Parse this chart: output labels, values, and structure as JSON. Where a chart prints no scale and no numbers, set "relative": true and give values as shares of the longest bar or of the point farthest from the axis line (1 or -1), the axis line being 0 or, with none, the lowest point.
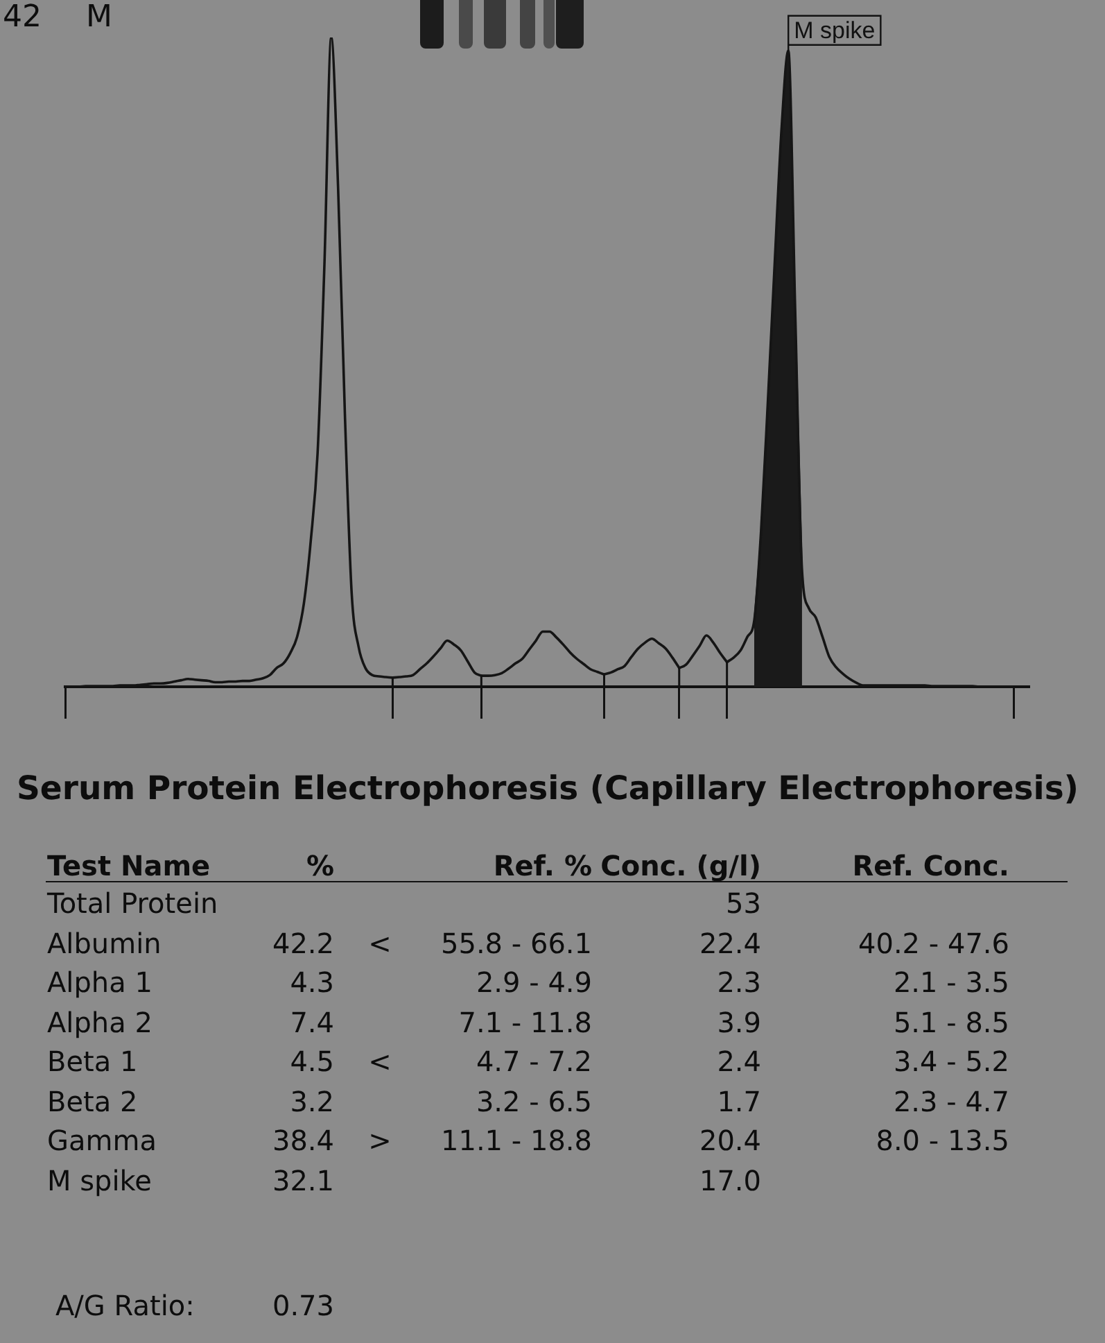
{
  "chart_data": [
    {
      "type": "line",
      "relative": true,
      "tick_labels": false,
      "categories": [
        null,
        null,
        null,
        null,
        null,
        null,
        null,
        null,
        null,
        null,
        null,
        null,
        null,
        null,
        null,
        null,
        null,
        null,
        null,
        null,
        null,
        null,
        null,
        null,
        null,
        null,
        null,
        null,
        null,
        null,
        null,
        null,
        null,
        null,
        null,
        null,
        null,
        null,
        null,
        null,
        null,
        null,
        null,
        null,
        null,
        null,
        null,
        null,
        null,
        null,
        null,
        null,
        null,
        null,
        null,
        null,
        null,
        null,
        null,
        null,
        null,
        null,
        null,
        null,
        null,
        null,
        null,
        null,
        null,
        null,
        null,
        null,
        null,
        null,
        null,
        null,
        null,
        null,
        null,
        null,
        null,
        null,
        null,
        null,
        null,
        null,
        null,
        null,
        null,
        null,
        null,
        null,
        null,
        null,
        null,
        null,
        null,
        null,
        null,
        null,
        null,
        null,
        null,
        null,
        null,
        null,
        null,
        null,
        null,
        null,
        null,
        null,
        null,
        null,
        null,
        null,
        null,
        null,
        null,
        null,
        null,
        null,
        null,
        null,
        null,
        null,
        null,
        null,
        null,
        null,
        null,
        null,
        null,
        null,
        null,
        null,
        null,
        null,
        null,
        null
      ],
      "annotations": [
        "42",
        "M"
      ],
      "series": [
        {
          "type": "line",
          "color": "#151515",
          "values": [
            0,
            0,
            0,
            0.001,
            0.001,
            0.001,
            0.001,
            0.001,
            0.002,
            0.002,
            0.002,
            0.003,
            0.004,
            0.005,
            0.005,
            0.006,
            0.008,
            0.01,
            0.012,
            0.011,
            0.01,
            0.009,
            0.007,
            0.007,
            0.008,
            0.008,
            0.009,
            0.009,
            0.011,
            0.013,
            0.018,
            0.029,
            0.036,
            0.052,
            0.077,
            0.129,
            0.225,
            0.36,
            0.65,
            1,
            0.77,
            0.42,
            0.143,
            0.062,
            0.029,
            0.018,
            0.016,
            0.015,
            0.014,
            null,
            null,
            null,
            null,
            null,
            null,
            null,
            null,
            null,
            null,
            null,
            null,
            null,
            null,
            null,
            null,
            null,
            null,
            null,
            null,
            null,
            null,
            null,
            null,
            null,
            null,
            null,
            null,
            null,
            null,
            null,
            null,
            null,
            null,
            null,
            null,
            null,
            null,
            null,
            null,
            null,
            null,
            null,
            null,
            null,
            null,
            null,
            null,
            null,
            null,
            null,
            null,
            null,
            null,
            null,
            null,
            null,
            null,
            null,
            null,
            null,
            null,
            null,
            null,
            null,
            null,
            null,
            null,
            null,
            null,
            null,
            null,
            null,
            null,
            null,
            null,
            null,
            null,
            null,
            null,
            null,
            null,
            null,
            null,
            null,
            null,
            null,
            null,
            null,
            null,
            null
          ]
        },
        {
          "type": "line",
          "color": "#151515",
          "values": [
            null,
            null,
            null,
            null,
            null,
            null,
            null,
            null,
            null,
            null,
            null,
            null,
            null,
            null,
            null,
            null,
            null,
            null,
            null,
            null,
            null,
            null,
            null,
            null,
            null,
            null,
            null,
            null,
            null,
            null,
            null,
            null,
            null,
            null,
            null,
            null,
            null,
            null,
            null,
            null,
            null,
            null,
            null,
            null,
            null,
            null,
            null,
            null,
            0.014,
            0.015,
            0.016,
            0.018,
            0.027,
            0.036,
            0.047,
            0.059,
            0.071,
            0.065,
            0.056,
            0.039,
            0.022,
            0.017,
            null,
            null,
            null,
            null,
            null,
            null,
            null,
            null,
            null,
            null,
            null,
            null,
            null,
            null,
            null,
            null,
            null,
            null,
            null,
            null,
            null,
            null,
            null,
            null,
            null,
            null,
            null,
            null,
            null,
            null,
            null,
            null,
            null,
            null,
            null,
            null,
            null,
            null,
            null,
            null,
            null,
            null,
            null,
            null,
            null,
            null,
            null,
            null,
            null,
            null,
            null,
            null,
            null,
            null,
            null,
            null,
            null,
            null,
            null,
            null,
            null,
            null,
            null,
            null,
            null,
            null,
            null,
            null,
            null,
            null,
            null,
            null,
            null,
            null,
            null,
            null,
            null,
            null
          ]
        },
        {
          "type": "line",
          "color": "#151515",
          "values": [
            null,
            null,
            null,
            null,
            null,
            null,
            null,
            null,
            null,
            null,
            null,
            null,
            null,
            null,
            null,
            null,
            null,
            null,
            null,
            null,
            null,
            null,
            null,
            null,
            null,
            null,
            null,
            null,
            null,
            null,
            null,
            null,
            null,
            null,
            null,
            null,
            null,
            null,
            null,
            null,
            null,
            null,
            null,
            null,
            null,
            null,
            null,
            null,
            null,
            null,
            null,
            null,
            null,
            null,
            null,
            null,
            null,
            null,
            null,
            null,
            null,
            0.017,
            0.017,
            0.018,
            0.021,
            0.028,
            0.036,
            0.043,
            0.057,
            0.071,
            0.085,
            0.085,
            0.076,
            0.065,
            0.053,
            0.043,
            0.035,
            0.027,
            0.023,
            0.019,
            null,
            null,
            null,
            null,
            null,
            null,
            null,
            null,
            null,
            null,
            null,
            null,
            null,
            null,
            null,
            null,
            null,
            null,
            null,
            null,
            null,
            null,
            null,
            null,
            null,
            null,
            null,
            null,
            null,
            null,
            null,
            null,
            null,
            null,
            null,
            null,
            null,
            null,
            null,
            null,
            null,
            null,
            null,
            null,
            null,
            null,
            null,
            null,
            null,
            null,
            null,
            null,
            null,
            null,
            null,
            null,
            null,
            null,
            null,
            null
          ]
        },
        {
          "type": "line",
          "color": "#151515",
          "values": [
            null,
            null,
            null,
            null,
            null,
            null,
            null,
            null,
            null,
            null,
            null,
            null,
            null,
            null,
            null,
            null,
            null,
            null,
            null,
            null,
            null,
            null,
            null,
            null,
            null,
            null,
            null,
            null,
            null,
            null,
            null,
            null,
            null,
            null,
            null,
            null,
            null,
            null,
            null,
            null,
            null,
            null,
            null,
            null,
            null,
            null,
            null,
            null,
            null,
            null,
            null,
            null,
            null,
            null,
            null,
            null,
            null,
            null,
            null,
            null,
            null,
            null,
            null,
            null,
            null,
            null,
            null,
            null,
            null,
            null,
            null,
            null,
            null,
            null,
            null,
            null,
            null,
            null,
            null,
            0.019,
            0.022,
            0.027,
            0.032,
            0.046,
            0.059,
            0.068,
            0.074,
            0.067,
            0.059,
            0.045,
            0.029,
            null,
            null,
            null,
            null,
            null,
            null,
            null,
            null,
            null,
            null,
            null,
            null,
            null,
            null,
            null,
            null,
            null,
            null,
            null,
            null,
            null,
            null,
            null,
            null,
            null,
            null,
            null,
            null,
            null,
            null,
            null,
            null,
            null,
            null,
            null,
            null,
            null,
            null,
            null,
            null,
            null,
            null,
            null,
            null,
            null,
            null,
            null,
            null,
            null
          ]
        },
        {
          "type": "line",
          "color": "#151515",
          "values": [
            null,
            null,
            null,
            null,
            null,
            null,
            null,
            null,
            null,
            null,
            null,
            null,
            null,
            null,
            null,
            null,
            null,
            null,
            null,
            null,
            null,
            null,
            null,
            null,
            null,
            null,
            null,
            null,
            null,
            null,
            null,
            null,
            null,
            null,
            null,
            null,
            null,
            null,
            null,
            null,
            null,
            null,
            null,
            null,
            null,
            null,
            null,
            null,
            null,
            null,
            null,
            null,
            null,
            null,
            null,
            null,
            null,
            null,
            null,
            null,
            null,
            null,
            null,
            null,
            null,
            null,
            null,
            null,
            null,
            null,
            null,
            null,
            null,
            null,
            null,
            null,
            null,
            null,
            null,
            null,
            null,
            null,
            null,
            null,
            null,
            null,
            null,
            null,
            null,
            null,
            0.029,
            0.034,
            0.048,
            0.063,
            0.079,
            0.068,
            0.052,
            0.038,
            null,
            null,
            null,
            null,
            null,
            null,
            null,
            null,
            null,
            null,
            null,
            null,
            null,
            null,
            null,
            null,
            null,
            null,
            null,
            null,
            null,
            null,
            null,
            null,
            null,
            null,
            null,
            null,
            null,
            null,
            null,
            null,
            null,
            null,
            null,
            null,
            null,
            null,
            null,
            null,
            null,
            null
          ]
        },
        {
          "type": "line",
          "color": "#151515",
          "values": [
            null,
            null,
            null,
            null,
            null,
            null,
            null,
            null,
            null,
            null,
            null,
            null,
            null,
            null,
            null,
            null,
            null,
            null,
            null,
            null,
            null,
            null,
            null,
            null,
            null,
            null,
            null,
            null,
            null,
            null,
            null,
            null,
            null,
            null,
            null,
            null,
            null,
            null,
            null,
            null,
            null,
            null,
            null,
            null,
            null,
            null,
            null,
            null,
            null,
            null,
            null,
            null,
            null,
            null,
            null,
            null,
            null,
            null,
            null,
            null,
            null,
            null,
            null,
            null,
            null,
            null,
            null,
            null,
            null,
            null,
            null,
            null,
            null,
            null,
            null,
            null,
            null,
            null,
            null,
            null,
            null,
            null,
            null,
            null,
            null,
            null,
            null,
            null,
            null,
            null,
            null,
            null,
            null,
            null,
            null,
            null,
            null,
            0.038,
            0.045,
            0.056,
            0.077,
            0.102,
            0.24,
            0.44,
            0.653,
            0.859,
            0.98,
            0.58,
            0.18,
            0.121,
            0.107,
            0.077,
            0.046,
            0.03,
            0.02,
            0.012,
            0.006,
            0.002,
            0.002,
            0.002,
            0.002,
            0.002,
            0.002,
            0.002,
            0.002,
            0.002,
            0.002,
            0.001,
            0.001,
            0.001,
            0.001,
            0.001,
            0.001,
            0.001,
            0,
            0,
            0,
            0,
            0,
            0
          ]
        },
        {
          "type": "area",
          "name": "M spike",
          "color": "#1a1a1a",
          "values": [
            null,
            null,
            null,
            null,
            null,
            null,
            null,
            null,
            null,
            null,
            null,
            null,
            null,
            null,
            null,
            null,
            null,
            null,
            null,
            null,
            null,
            null,
            null,
            null,
            null,
            null,
            null,
            null,
            null,
            null,
            null,
            null,
            null,
            null,
            null,
            null,
            null,
            null,
            null,
            null,
            null,
            null,
            null,
            null,
            null,
            null,
            null,
            null,
            null,
            null,
            null,
            null,
            null,
            null,
            null,
            null,
            null,
            null,
            null,
            null,
            null,
            null,
            null,
            null,
            null,
            null,
            null,
            null,
            null,
            null,
            null,
            null,
            null,
            null,
            null,
            null,
            null,
            null,
            null,
            null,
            null,
            null,
            null,
            null,
            null,
            null,
            null,
            null,
            null,
            null,
            null,
            null,
            null,
            null,
            null,
            null,
            null,
            null,
            null,
            null,
            null,
            0.102,
            0.24,
            0.44,
            0.653,
            0.859,
            0.98,
            0.58,
            0.18,
            null,
            null,
            null,
            null,
            null,
            null,
            null,
            null,
            null,
            null,
            null,
            null,
            null,
            null,
            null,
            null,
            null,
            null,
            null,
            null,
            null,
            null,
            null,
            null,
            null,
            null,
            null,
            null,
            null,
            null,
            null
          ]
        }
      ]
    },
    {
      "type": "other",
      "title": "Serum Protein Electrophoresis (Capillary Electrophoresis)",
      "ylabel": "Test Name",
      "data_labels": true,
      "categories": [
        "Total Protein",
        "Albumin",
        "Alpha 1",
        "Alpha 2",
        "Beta 1",
        "Beta 2",
        "Gamma",
        "M spike"
      ],
      "series": [
        {
          "name": "%",
          "values": [
            null,
            42.2,
            4.3,
            7.4,
            4.5,
            3.2,
            38.4,
            32.1
          ]
        },
        {
          "values": [
            null,
            null,
            null,
            null,
            null,
            null,
            null,
            null
          ],
          "value_labels": [
            null,
            "<",
            null,
            null,
            "<",
            null,
            ">",
            null
          ]
        },
        {
          "name": "Ref. %",
          "values": [
            null,
            null,
            null,
            null,
            null,
            null,
            null,
            null
          ],
          "value_labels": [
            null,
            "55.8 - 66.1",
            "2.9 - 4.9",
            "7.1 - 11.8",
            "4.7 - 7.2",
            "3.2 - 6.5",
            "11.1 - 18.8",
            null
          ]
        },
        {
          "name": "Conc. (g/l)",
          "values": [
            null,
            null,
            null,
            null,
            null,
            null,
            null,
            null
          ],
          "value_labels": [
            "53",
            "22.4",
            "2.3",
            "3.9",
            "2.4",
            "1.7",
            "20.4",
            "17.0"
          ]
        },
        {
          "name": "Ref. Conc.",
          "values": [
            null,
            null,
            null,
            null,
            null,
            null,
            null,
            null
          ],
          "value_labels": [
            null,
            "40.2 - 47.6",
            "2.1 - 3.5",
            "5.1 - 8.5",
            "3.4 - 5.2",
            "2.3 - 4.7",
            "8.0 - 13.5",
            null
          ]
        }
      ],
      "annotations": [
        "A/G Ratio:",
        "0.73"
      ]
    }
  ]
}
